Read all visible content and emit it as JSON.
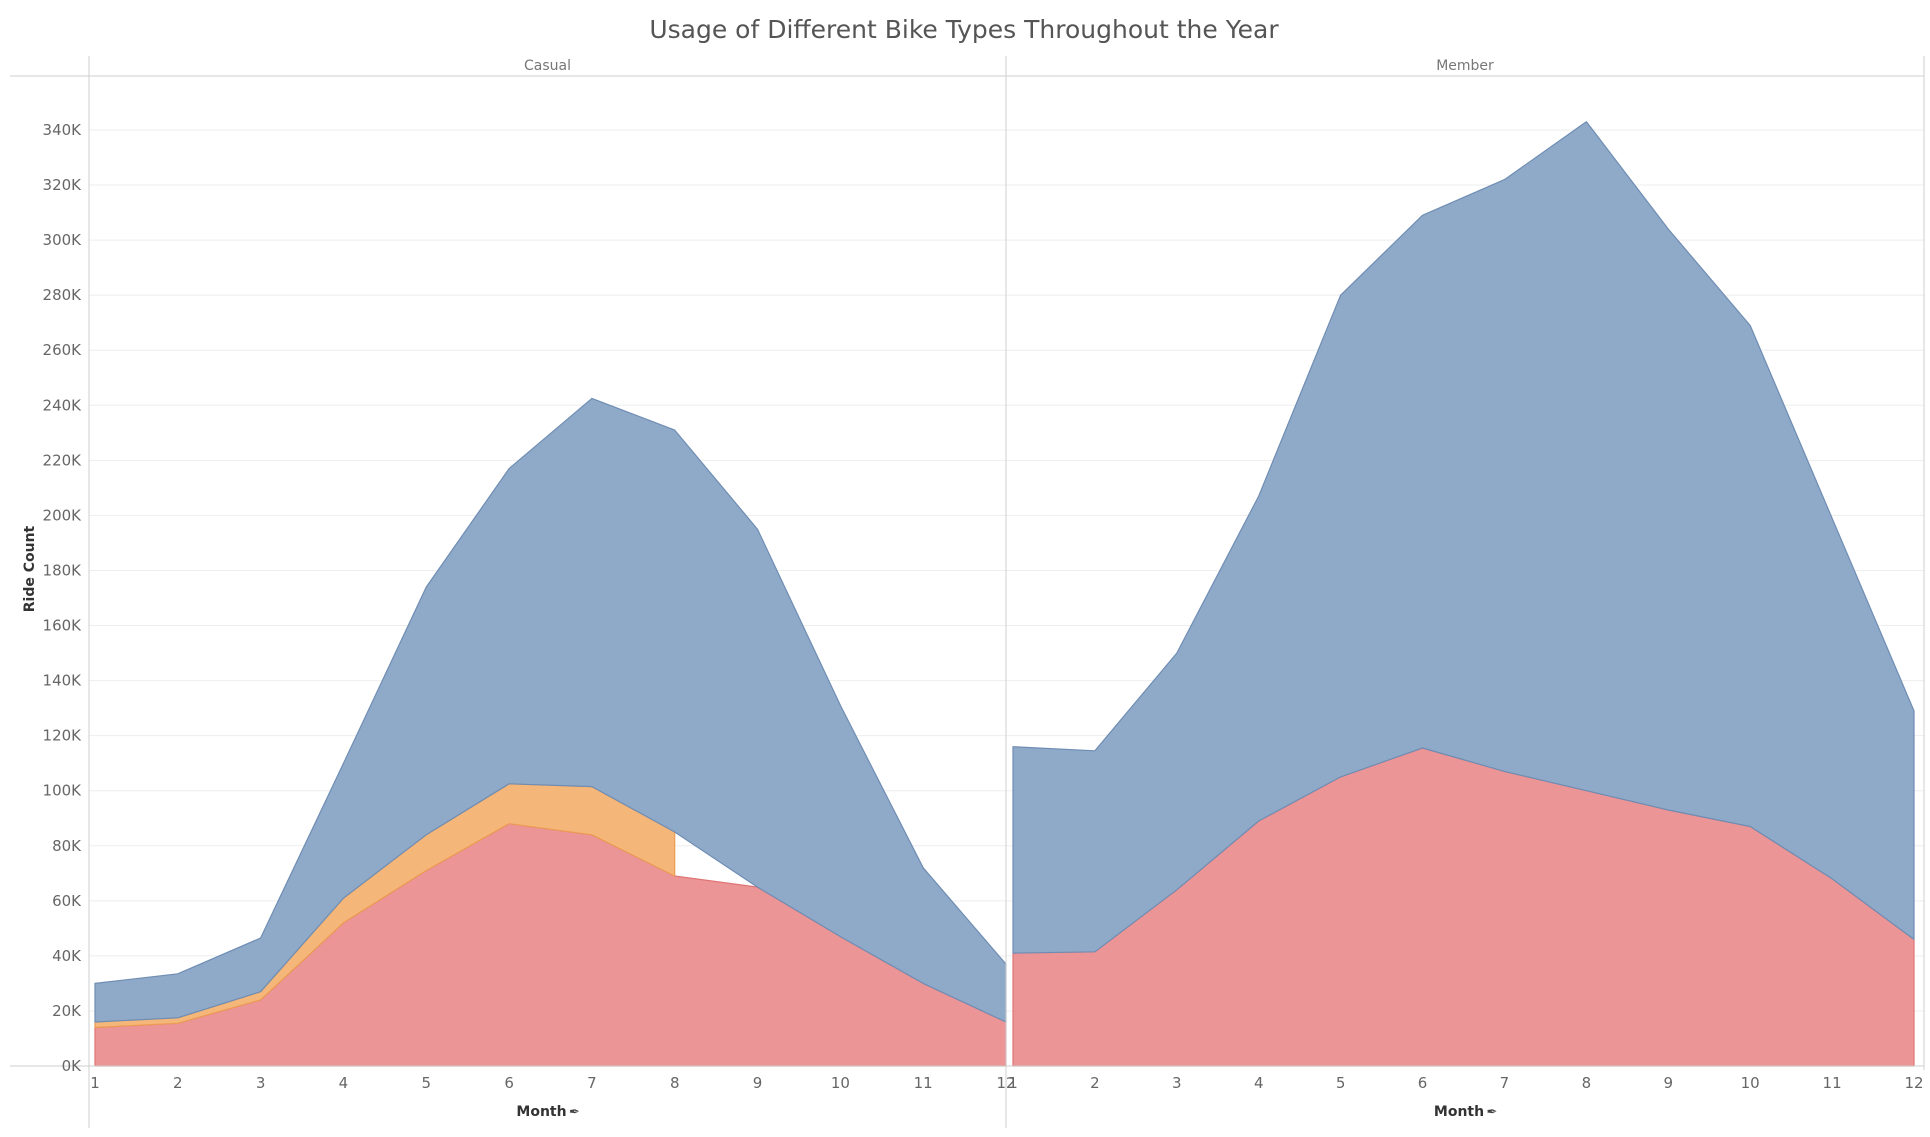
{
  "colors": {
    "classic_bike": "#8fa9c8",
    "classic_bike_stroke": "#6f8db3",
    "docked_bike": "#f5b67a",
    "docked_bike_stroke": "#eb9b52",
    "electric_bike": "#ec9596",
    "electric_bike_stroke": "#e07576"
  },
  "icons": {
    "pin": "pin-icon"
  },
  "chart_data": {
    "type": "area",
    "title": "Usage of Different Bike Types Throughout the Year",
    "xlabel": "Month",
    "ylabel": "Ride Count",
    "ylim": [
      0,
      360000
    ],
    "yticks": [
      0,
      20000,
      40000,
      60000,
      80000,
      100000,
      120000,
      140000,
      160000,
      180000,
      200000,
      220000,
      240000,
      260000,
      280000,
      300000,
      320000,
      340000
    ],
    "ytick_labels": [
      "0K",
      "20K",
      "40K",
      "60K",
      "80K",
      "100K",
      "120K",
      "140K",
      "160K",
      "180K",
      "200K",
      "220K",
      "240K",
      "260K",
      "280K",
      "300K",
      "320K",
      "340K"
    ],
    "x": [
      1,
      2,
      3,
      4,
      5,
      6,
      7,
      8,
      9,
      10,
      11,
      12
    ],
    "stacked": true,
    "grid": true,
    "legend": "none",
    "panels": [
      {
        "name": "Casual",
        "series": [
          {
            "key": "electric_bike",
            "values": [
              14000,
              15500,
              24000,
              52000,
              71000,
              88000,
              84000,
              69000,
              65000,
              47000,
              30000,
              16000
            ]
          },
          {
            "key": "docked_bike",
            "values": [
              2000,
              2000,
              3000,
              9000,
              13000,
              14500,
              17500,
              16000,
              null,
              null,
              null,
              null
            ]
          },
          {
            "key": "classic_bike",
            "values": [
              14000,
              16000,
              19500,
              49000,
              90000,
              114500,
              141000,
              146000,
              130000,
              84000,
              42000,
              21000
            ]
          }
        ]
      },
      {
        "name": "Member",
        "series": [
          {
            "key": "electric_bike",
            "values": [
              41000,
              41500,
              64000,
              89000,
              105000,
              115500,
              107000,
              100000,
              93000,
              87000,
              68000,
              46000
            ]
          },
          {
            "key": "classic_bike",
            "values": [
              75000,
              73000,
              86000,
              118000,
              175000,
              193500,
              215000,
              243000,
              211000,
              182000,
              131000,
              83000
            ]
          }
        ]
      }
    ]
  }
}
